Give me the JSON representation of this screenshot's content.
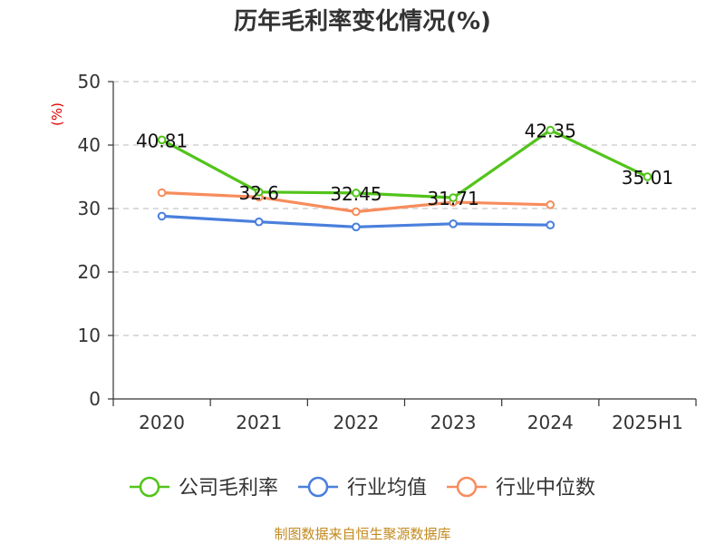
{
  "chart_data": {
    "type": "line",
    "title": "历年毛利率变化情况(%)",
    "ylabel": "(%)",
    "xlabel": "",
    "categories": [
      "2020",
      "2021",
      "2022",
      "2023",
      "2024",
      "2025H1"
    ],
    "ylim": [
      0,
      50
    ],
    "yticks": [
      0,
      10,
      20,
      30,
      40,
      50
    ],
    "grid": true,
    "legend_position": "bottom",
    "series": [
      {
        "name": "公司毛利率",
        "color": "#52c41a",
        "values": [
          40.81,
          32.6,
          32.45,
          31.71,
          42.35,
          35.01
        ],
        "labels": [
          "40.81",
          "32.6",
          "32.45",
          "31.71",
          "42.35",
          "35.01"
        ]
      },
      {
        "name": "行业均值",
        "color": "#4a7fdc",
        "values": [
          28.8,
          27.9,
          27.1,
          27.6,
          27.4,
          null
        ]
      },
      {
        "name": "行业中位数",
        "color": "#f78c5c",
        "values": [
          32.5,
          31.8,
          29.5,
          31.0,
          30.6,
          null
        ]
      }
    ]
  },
  "footer": {
    "source": "制图数据来自恒生聚源数据库"
  }
}
